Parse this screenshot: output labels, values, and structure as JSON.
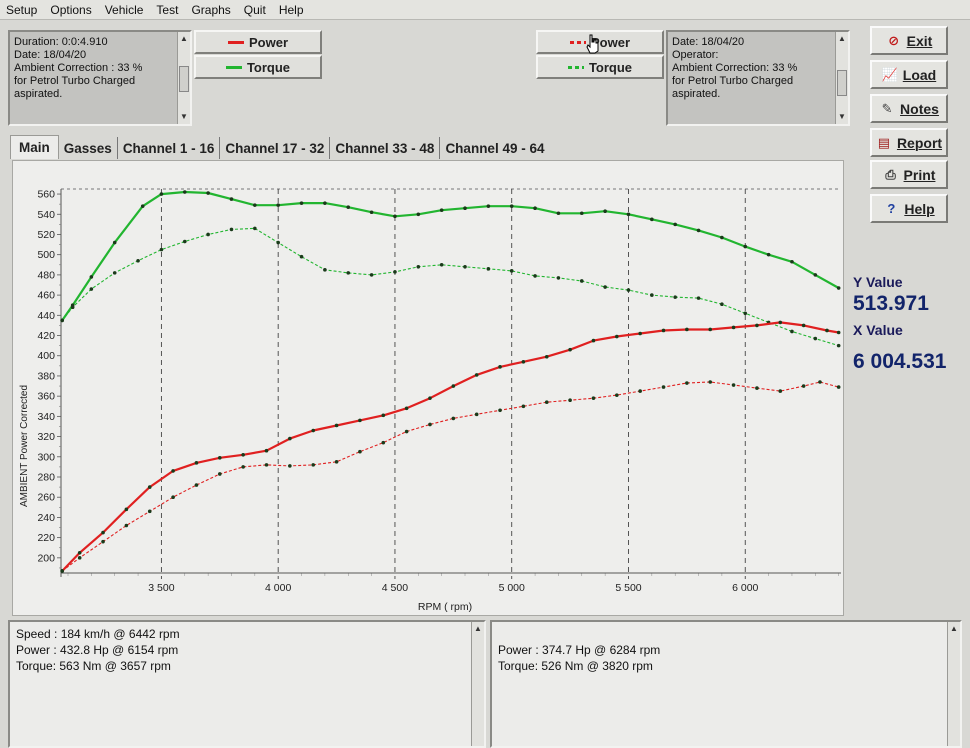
{
  "menu": [
    "Setup",
    "Options",
    "Vehicle",
    "Test",
    "Graphs",
    "Quit",
    "Help"
  ],
  "left_info": [
    "Duration: 0:0:4.910",
    "Date: 18/04/20",
    "Ambient Correction : 33 %",
    " for Petrol Turbo Charged",
    "aspirated."
  ],
  "right_info": [
    "Date: 18/04/20",
    "Operator:",
    "Ambient Correction: 33 %",
    " for Petrol Turbo Charged",
    "aspirated."
  ],
  "legend_left": {
    "power": "Power",
    "torque": "Torque"
  },
  "legend_right": {
    "power": "Power",
    "torque": "Torque"
  },
  "buttons": {
    "exit": "Exit",
    "load": "Load",
    "notes": "Notes",
    "report": "Report",
    "print": "Print",
    "help": "Help"
  },
  "tabs": [
    "Main",
    "Gasses",
    "Channel 1 - 16",
    "Channel 17 - 32",
    "Channel 33 - 48",
    "Channel 49 - 64"
  ],
  "readout": {
    "y_label": "Y Value",
    "y_value": "513.971",
    "x_label": "X Value",
    "x_value": "6 004.531"
  },
  "bottom_left": [
    "Speed : 184 km/h @ 6442 rpm",
    "Power : 432.8 Hp @ 6154 rpm",
    "Torque: 563 Nm @ 3657 rpm"
  ],
  "bottom_right": [
    "Power : 374.7 Hp @ 6284 rpm",
    "Torque: 526 Nm @ 3820 rpm"
  ],
  "colors": {
    "power": "#e02020",
    "torque": "#22b530"
  },
  "chart_data": {
    "type": "line",
    "xlabel": "RPM ( rpm)",
    "ylabel": "AMBIENT Power Corrected",
    "xlim": [
      3070,
      6410
    ],
    "ylim": [
      185,
      565
    ],
    "x_ticks": [
      3500,
      4000,
      4500,
      5000,
      5500,
      6000
    ],
    "x_tick_labels": [
      "3 500",
      "4 000",
      "4 500",
      "5 000",
      "5 500",
      "6 000"
    ],
    "y_ticks": [
      200,
      220,
      240,
      260,
      280,
      300,
      320,
      340,
      360,
      380,
      400,
      420,
      440,
      460,
      480,
      500,
      520,
      540,
      560
    ],
    "grid": "vertical dashed",
    "series": [
      {
        "name": "Torque",
        "style": "solid",
        "color": "#22b530",
        "points": [
          [
            3075,
            435
          ],
          [
            3120,
            450
          ],
          [
            3200,
            478
          ],
          [
            3300,
            512
          ],
          [
            3420,
            548
          ],
          [
            3500,
            560
          ],
          [
            3600,
            562
          ],
          [
            3700,
            561
          ],
          [
            3800,
            555
          ],
          [
            3900,
            549
          ],
          [
            4000,
            549
          ],
          [
            4100,
            551
          ],
          [
            4200,
            551
          ],
          [
            4300,
            547
          ],
          [
            4400,
            542
          ],
          [
            4500,
            538
          ],
          [
            4600,
            540
          ],
          [
            4700,
            544
          ],
          [
            4800,
            546
          ],
          [
            4900,
            548
          ],
          [
            5000,
            548
          ],
          [
            5100,
            546
          ],
          [
            5200,
            541
          ],
          [
            5300,
            541
          ],
          [
            5400,
            543
          ],
          [
            5500,
            540
          ],
          [
            5600,
            535
          ],
          [
            5700,
            530
          ],
          [
            5800,
            524
          ],
          [
            5900,
            517
          ],
          [
            6000,
            508
          ],
          [
            6100,
            500
          ],
          [
            6200,
            493
          ],
          [
            6300,
            480
          ],
          [
            6400,
            467
          ]
        ]
      },
      {
        "name": "Torque",
        "style": "dashed",
        "color": "#22b530",
        "points": [
          [
            3075,
            435
          ],
          [
            3120,
            448
          ],
          [
            3200,
            466
          ],
          [
            3300,
            482
          ],
          [
            3400,
            494
          ],
          [
            3500,
            505
          ],
          [
            3600,
            513
          ],
          [
            3700,
            520
          ],
          [
            3800,
            525
          ],
          [
            3900,
            526
          ],
          [
            4000,
            512
          ],
          [
            4100,
            498
          ],
          [
            4200,
            485
          ],
          [
            4300,
            482
          ],
          [
            4400,
            480
          ],
          [
            4500,
            483
          ],
          [
            4600,
            488
          ],
          [
            4700,
            490
          ],
          [
            4800,
            488
          ],
          [
            4900,
            486
          ],
          [
            5000,
            484
          ],
          [
            5100,
            479
          ],
          [
            5200,
            477
          ],
          [
            5300,
            474
          ],
          [
            5400,
            468
          ],
          [
            5500,
            465
          ],
          [
            5600,
            460
          ],
          [
            5700,
            458
          ],
          [
            5800,
            457
          ],
          [
            5900,
            451
          ],
          [
            6000,
            442
          ],
          [
            6100,
            433
          ],
          [
            6200,
            424
          ],
          [
            6300,
            417
          ],
          [
            6400,
            410
          ]
        ]
      },
      {
        "name": "Power",
        "style": "solid",
        "color": "#e02020",
        "points": [
          [
            3075,
            187
          ],
          [
            3150,
            205
          ],
          [
            3250,
            225
          ],
          [
            3350,
            248
          ],
          [
            3450,
            270
          ],
          [
            3550,
            286
          ],
          [
            3650,
            294
          ],
          [
            3750,
            299
          ],
          [
            3850,
            302
          ],
          [
            3950,
            306
          ],
          [
            4050,
            318
          ],
          [
            4150,
            326
          ],
          [
            4250,
            331
          ],
          [
            4350,
            336
          ],
          [
            4450,
            341
          ],
          [
            4550,
            348
          ],
          [
            4650,
            358
          ],
          [
            4750,
            370
          ],
          [
            4850,
            381
          ],
          [
            4950,
            389
          ],
          [
            5050,
            394
          ],
          [
            5150,
            399
          ],
          [
            5250,
            406
          ],
          [
            5350,
            415
          ],
          [
            5450,
            419
          ],
          [
            5550,
            422
          ],
          [
            5650,
            425
          ],
          [
            5750,
            426
          ],
          [
            5850,
            426
          ],
          [
            5950,
            428
          ],
          [
            6050,
            430
          ],
          [
            6150,
            433
          ],
          [
            6250,
            430
          ],
          [
            6350,
            425
          ],
          [
            6400,
            423
          ]
        ]
      },
      {
        "name": "Power",
        "style": "dashed",
        "color": "#e02020",
        "points": [
          [
            3075,
            187
          ],
          [
            3150,
            200
          ],
          [
            3250,
            216
          ],
          [
            3350,
            232
          ],
          [
            3450,
            246
          ],
          [
            3550,
            260
          ],
          [
            3650,
            272
          ],
          [
            3750,
            283
          ],
          [
            3850,
            290
          ],
          [
            3950,
            292
          ],
          [
            4050,
            291
          ],
          [
            4150,
            292
          ],
          [
            4250,
            295
          ],
          [
            4350,
            305
          ],
          [
            4450,
            314
          ],
          [
            4550,
            325
          ],
          [
            4650,
            332
          ],
          [
            4750,
            338
          ],
          [
            4850,
            342
          ],
          [
            4950,
            346
          ],
          [
            5050,
            350
          ],
          [
            5150,
            354
          ],
          [
            5250,
            356
          ],
          [
            5350,
            358
          ],
          [
            5450,
            361
          ],
          [
            5550,
            365
          ],
          [
            5650,
            369
          ],
          [
            5750,
            373
          ],
          [
            5850,
            374
          ],
          [
            5950,
            371
          ],
          [
            6050,
            368
          ],
          [
            6150,
            365
          ],
          [
            6250,
            370
          ],
          [
            6320,
            374
          ],
          [
            6400,
            369
          ]
        ]
      }
    ]
  }
}
